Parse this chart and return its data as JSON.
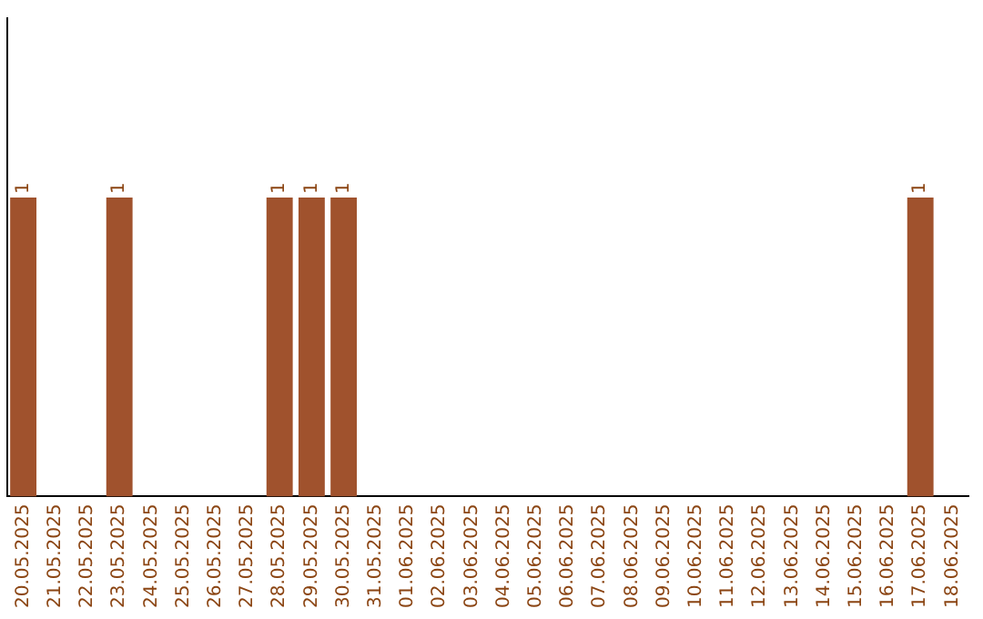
{
  "chart_data": {
    "type": "bar",
    "categories": [
      "20.05.2025",
      "21.05.2025",
      "22.05.2025",
      "23.05.2025",
      "24.05.2025",
      "25.05.2025",
      "26.05.2025",
      "27.05.2025",
      "28.05.2025",
      "29.05.2025",
      "30.05.2025",
      "31.05.2025",
      "01.06.2025",
      "02.06.2025",
      "03.06.2025",
      "04.06.2025",
      "05.06.2025",
      "06.06.2025",
      "07.06.2025",
      "08.06.2025",
      "09.06.2025",
      "10.06.2025",
      "11.06.2025",
      "12.06.2025",
      "13.06.2025",
      "14.06.2025",
      "15.06.2025",
      "16.06.2025",
      "17.06.2025",
      "18.06.2025"
    ],
    "values": [
      1,
      0,
      0,
      1,
      0,
      0,
      0,
      0,
      1,
      1,
      1,
      0,
      0,
      0,
      0,
      0,
      0,
      0,
      0,
      0,
      0,
      0,
      0,
      0,
      0,
      0,
      0,
      0,
      1,
      0
    ],
    "value_labels": [
      "1",
      null,
      null,
      "1",
      null,
      null,
      null,
      null,
      "1",
      "1",
      "1",
      null,
      null,
      null,
      null,
      null,
      null,
      null,
      null,
      null,
      null,
      null,
      null,
      null,
      null,
      null,
      null,
      null,
      "1",
      null
    ],
    "color": "#a0522d",
    "grid": false,
    "legend": false
  }
}
